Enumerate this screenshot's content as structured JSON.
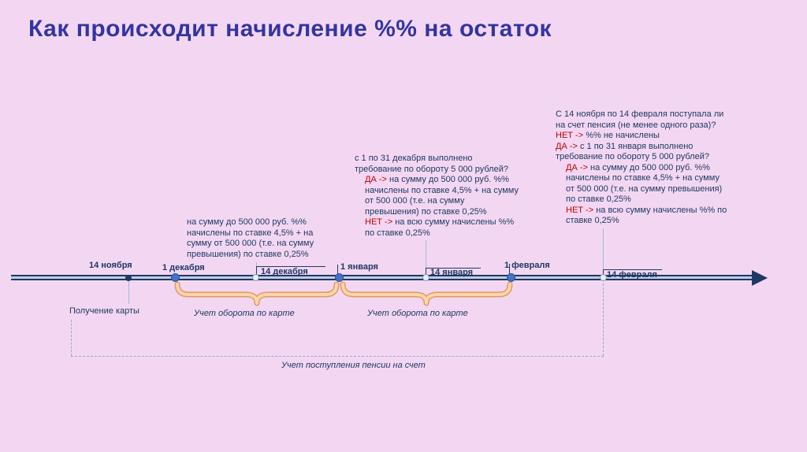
{
  "slide": {
    "title": "Как происходит начисление %% на остаток"
  },
  "timeline": {
    "events": [
      {
        "label": "14 ноября"
      },
      {
        "label": "1 декабря"
      },
      {
        "label": "14 декабря"
      },
      {
        "label": "1 января"
      },
      {
        "label": "14 января"
      },
      {
        "label": "1 февраля"
      },
      {
        "label": "14 февраля"
      }
    ],
    "card_label": "Получение карты",
    "braces": [
      {
        "label": "Учет оборота по карте"
      },
      {
        "label": "Учет оборота по карте"
      }
    ],
    "pension_label": "Учет поступления пенсии на счет"
  },
  "annotations": {
    "period1": {
      "lines": [
        {
          "text": "на сумму до 500 000 руб. %%"
        },
        {
          "text": "начислены по ставке 4,5% + на"
        },
        {
          "text": "сумму от 500 000 (т.е. на сумму"
        },
        {
          "text": "превышения) по ставке 0,25%"
        }
      ]
    },
    "period2": {
      "lines": [
        {
          "text": "с 1 по 31 декабря выполнено"
        },
        {
          "text": "требование по обороту 5 000 рублей?"
        },
        {
          "kw": "ДА ->",
          "text": " на сумму до 500 000 руб. %%",
          "indent": true
        },
        {
          "text": "начислены по ставке 4,5% + на сумму",
          "indent": true
        },
        {
          "text": "от 500 000 (т.е. на сумму",
          "indent": true
        },
        {
          "text": "превышения) по ставке 0,25%",
          "indent": true
        },
        {
          "kw": "НЕТ ->",
          "text": " на всю сумму начислены %%",
          "indent": true
        },
        {
          "text": "по ставке 0,25%",
          "indent": true
        }
      ]
    },
    "period3": {
      "lines": [
        {
          "text": "С 14 ноября по 14 февраля поступала ли"
        },
        {
          "text": "на счет пенсия (не менее одного раза)?"
        },
        {
          "kw": "НЕТ ->",
          "text": " %% не начислены"
        },
        {
          "kw": "ДА ->",
          "text": " с 1 по 31 января выполнено"
        },
        {
          "text": "требование по обороту 5 000 рублей?"
        },
        {
          "kw": "ДА ->",
          "text": " на сумму до 500 000 руб. %%",
          "indent": true
        },
        {
          "text": "начислены по ставке 4,5% + на сумму",
          "indent": true
        },
        {
          "text": "от 500 000 (т.е. на сумму превышения)",
          "indent": true
        },
        {
          "text": "по ставке 0,25%",
          "indent": true
        },
        {
          "kw": "НЕТ ->",
          "text": " на всю сумму начислены %% по",
          "indent": true
        },
        {
          "text": "ставке 0,25%",
          "indent": true
        }
      ]
    }
  }
}
